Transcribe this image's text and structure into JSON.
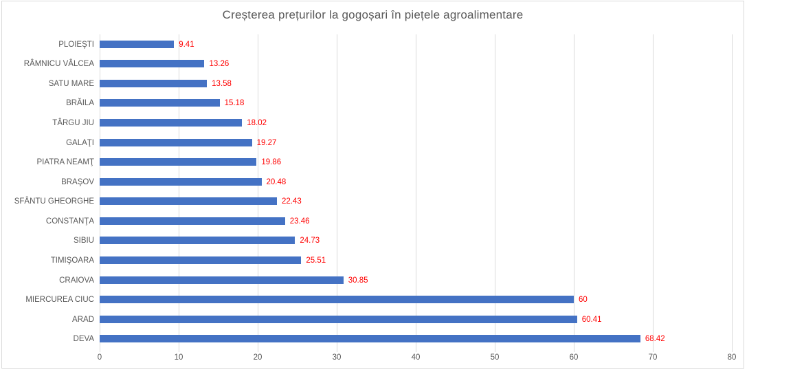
{
  "chart_data": {
    "type": "bar",
    "orientation": "horizontal",
    "title": "Creșterea prețurilor la gogoșari în piețele agroalimentare",
    "categories": [
      "PLOIEŞTI",
      "RÂMNICU VÂLCEA",
      "SATU MARE",
      "BRĂILA",
      "TÂRGU JIU",
      "GALAŢI",
      "PIATRA NEAMŢ",
      "BRAŞOV",
      "SFÂNTU GHEORGHE",
      "CONSTANŢA",
      "SIBIU",
      "TIMIŞOARA",
      "CRAIOVA",
      "MIERCUREA CIUC",
      "ARAD",
      "DEVA"
    ],
    "values": [
      9.41,
      13.26,
      13.58,
      15.18,
      18.02,
      19.27,
      19.86,
      20.48,
      22.43,
      23.46,
      24.73,
      25.51,
      30.85,
      60,
      60.41,
      68.42
    ],
    "value_labels": [
      "9.41",
      "13.26",
      "13.58",
      "15.18",
      "18.02",
      "19.27",
      "19.86",
      "20.48",
      "22.43",
      "23.46",
      "24.73",
      "25.51",
      "30.85",
      "60",
      "60.41",
      "68.42"
    ],
    "xlabel": "",
    "ylabel": "",
    "xlim": [
      0,
      80
    ],
    "xtick_labels": [
      "0",
      "10",
      "20",
      "30",
      "40",
      "50",
      "60",
      "70",
      "80"
    ],
    "xticks": [
      0,
      10,
      20,
      30,
      40,
      50,
      60,
      70,
      80
    ],
    "grid": true,
    "legend": "none",
    "colors": {
      "bar": "#4472C4",
      "value_label": "#FF0000",
      "axis_label": "#595959",
      "title": "#595959",
      "gridline": "#D9D9D9",
      "chart_border": "#D9D9D9"
    }
  }
}
